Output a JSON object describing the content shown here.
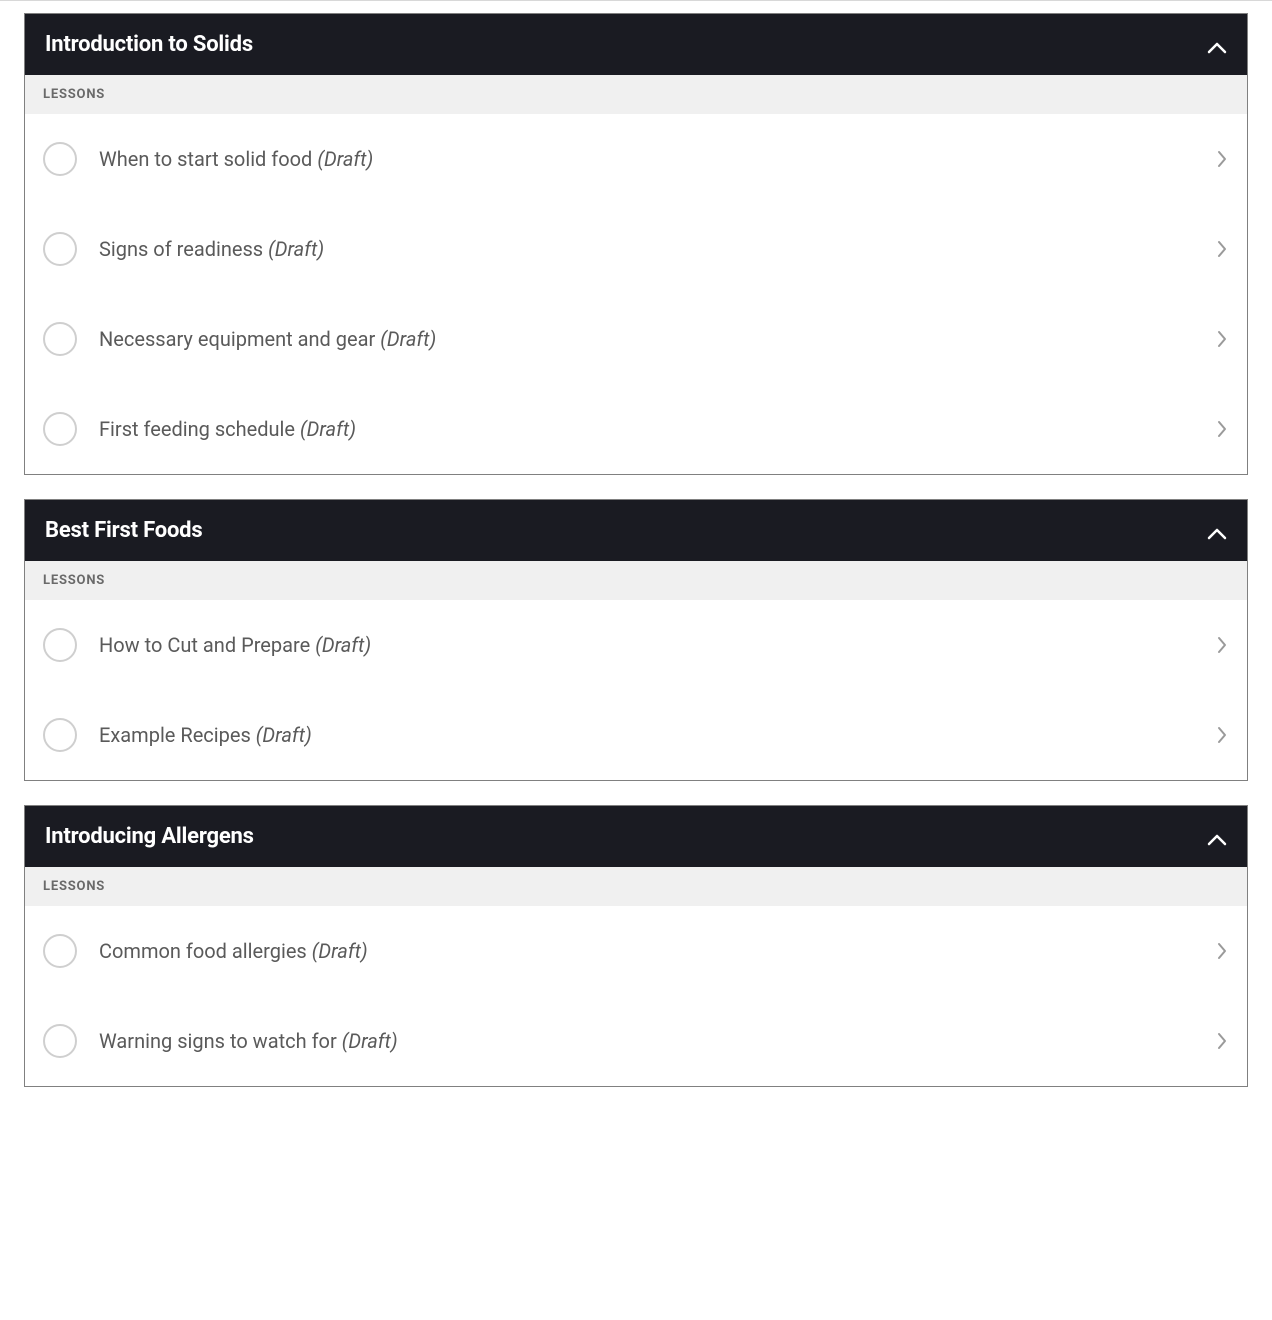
{
  "lessons_label": "LESSONS",
  "draft_suffix": "(Draft)",
  "colors": {
    "section_header_bg": "#1a1b22",
    "section_header_text": "#ffffff",
    "section_border": "#808080",
    "lessons_label_bg": "#f0f0f0",
    "lessons_label_text": "#6a6a6a",
    "circle_border": "#cfcfcf",
    "lesson_text": "#5a5a5a",
    "chevron_right": "#9a9a9a",
    "chevron_up": "#ffffff",
    "body_bg": "#ffffff"
  },
  "sections": [
    {
      "title": "Introduction to Solids",
      "lessons": [
        {
          "title": "When to start solid food",
          "draft": true
        },
        {
          "title": "Signs of readiness",
          "draft": true
        },
        {
          "title": "Necessary equipment and gear",
          "draft": true
        },
        {
          "title": "First feeding schedule",
          "draft": true
        }
      ]
    },
    {
      "title": "Best First Foods",
      "lessons": [
        {
          "title": "How to Cut and Prepare",
          "draft": true
        },
        {
          "title": "Example Recipes",
          "draft": true
        }
      ]
    },
    {
      "title": "Introducing Allergens",
      "lessons": [
        {
          "title": "Common food allergies",
          "draft": true
        },
        {
          "title": "Warning signs to watch for",
          "draft": true
        }
      ]
    }
  ]
}
